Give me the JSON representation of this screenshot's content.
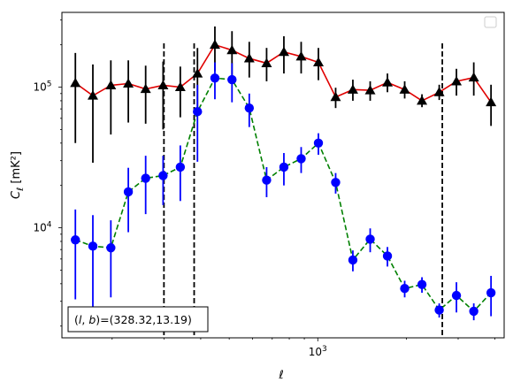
{
  "chart_data": {
    "type": "scatter",
    "xlabel": "ℓ",
    "ylabel": "C_ℓ  [mK²]",
    "xscale": "log",
    "yscale": "log",
    "xlim": [
      135,
      4300
    ],
    "ylim": [
      1650,
      340000
    ],
    "grid": false,
    "legend": {
      "placement": "top-right",
      "entries": []
    },
    "x_tick_labels": [
      {
        "value": 1000,
        "base": "10",
        "exp": "3"
      }
    ],
    "y_tick_labels": [
      {
        "value": 10000,
        "base": "10",
        "exp": "4"
      },
      {
        "value": 100000,
        "base": "10",
        "exp": "5"
      }
    ],
    "annotation": "(l, b)=(328.32,13.19)",
    "vlines": [
      300,
      380,
      2650
    ],
    "series": [
      {
        "color": "#000000",
        "line_color": "#e00000",
        "line_style": "solid",
        "marker": "triangle",
        "points": [
          {
            "x": 150,
            "y": 107000,
            "lo": 40000,
            "hi": 175000
          },
          {
            "x": 172,
            "y": 87000,
            "lo": 29000,
            "hi": 145000
          },
          {
            "x": 198,
            "y": 103000,
            "lo": 46000,
            "hi": 155000
          },
          {
            "x": 227,
            "y": 106000,
            "lo": 56000,
            "hi": 155000
          },
          {
            "x": 260,
            "y": 97000,
            "lo": 55000,
            "hi": 142000
          },
          {
            "x": 298,
            "y": 103000,
            "lo": 50000,
            "hi": 152000
          },
          {
            "x": 341,
            "y": 100000,
            "lo": 61000,
            "hi": 140000
          },
          {
            "x": 390,
            "y": 125000,
            "lo": 67000,
            "hi": 190000
          },
          {
            "x": 447,
            "y": 200000,
            "lo": 130000,
            "hi": 270000
          },
          {
            "x": 511,
            "y": 183000,
            "lo": 118000,
            "hi": 250000
          },
          {
            "x": 585,
            "y": 160000,
            "lo": 117000,
            "hi": 210000
          },
          {
            "x": 670,
            "y": 148000,
            "lo": 110000,
            "hi": 190000
          },
          {
            "x": 767,
            "y": 178000,
            "lo": 125000,
            "hi": 230000
          },
          {
            "x": 878,
            "y": 165000,
            "lo": 125000,
            "hi": 210000
          },
          {
            "x": 1005,
            "y": 150000,
            "lo": 112000,
            "hi": 190000
          },
          {
            "x": 1150,
            "y": 85000,
            "lo": 71000,
            "hi": 99000
          },
          {
            "x": 1316,
            "y": 96000,
            "lo": 80000,
            "hi": 113000
          },
          {
            "x": 1507,
            "y": 95000,
            "lo": 80000,
            "hi": 110000
          },
          {
            "x": 1725,
            "y": 108000,
            "lo": 92000,
            "hi": 125000
          },
          {
            "x": 1974,
            "y": 96000,
            "lo": 83000,
            "hi": 110000
          },
          {
            "x": 2260,
            "y": 80000,
            "lo": 72000,
            "hi": 89000
          },
          {
            "x": 2587,
            "y": 92000,
            "lo": 81000,
            "hi": 104000
          },
          {
            "x": 2960,
            "y": 110000,
            "lo": 87000,
            "hi": 135000
          },
          {
            "x": 3390,
            "y": 117000,
            "lo": 87000,
            "hi": 150000
          },
          {
            "x": 3880,
            "y": 78000,
            "lo": 53000,
            "hi": 104000
          }
        ]
      },
      {
        "color": "#0000ff",
        "line_color": "#008000",
        "line_style": "dashed",
        "marker": "circle",
        "points": [
          {
            "x": 150,
            "y": 8200,
            "lo": 3100,
            "hi": 13500
          },
          {
            "x": 172,
            "y": 7400,
            "lo": 2700,
            "hi": 12300
          },
          {
            "x": 198,
            "y": 7200,
            "lo": 3200,
            "hi": 11300
          },
          {
            "x": 227,
            "y": 18000,
            "lo": 9300,
            "hi": 26700
          },
          {
            "x": 260,
            "y": 22500,
            "lo": 12500,
            "hi": 32500
          },
          {
            "x": 298,
            "y": 23500,
            "lo": 14500,
            "hi": 32500
          },
          {
            "x": 341,
            "y": 27000,
            "lo": 15500,
            "hi": 38500
          },
          {
            "x": 390,
            "y": 67000,
            "lo": 29500,
            "hi": 104000
          },
          {
            "x": 447,
            "y": 116000,
            "lo": 82000,
            "hi": 150000
          },
          {
            "x": 511,
            "y": 113000,
            "lo": 78000,
            "hi": 148000
          },
          {
            "x": 585,
            "y": 71000,
            "lo": 52000,
            "hi": 90000
          },
          {
            "x": 670,
            "y": 21800,
            "lo": 16500,
            "hi": 27000
          },
          {
            "x": 767,
            "y": 27000,
            "lo": 20000,
            "hi": 34000
          },
          {
            "x": 878,
            "y": 31000,
            "lo": 24500,
            "hi": 37500
          },
          {
            "x": 1005,
            "y": 40000,
            "lo": 33000,
            "hi": 47000
          },
          {
            "x": 1150,
            "y": 21000,
            "lo": 17500,
            "hi": 24500
          },
          {
            "x": 1316,
            "y": 5900,
            "lo": 4900,
            "hi": 6900
          },
          {
            "x": 1507,
            "y": 8300,
            "lo": 6700,
            "hi": 9900
          },
          {
            "x": 1725,
            "y": 6300,
            "lo": 5300,
            "hi": 7300
          },
          {
            "x": 1974,
            "y": 3700,
            "lo": 3200,
            "hi": 4200
          },
          {
            "x": 2260,
            "y": 3950,
            "lo": 3450,
            "hi": 4450
          },
          {
            "x": 2587,
            "y": 2600,
            "lo": 2300,
            "hi": 2900
          },
          {
            "x": 2960,
            "y": 3300,
            "lo": 2500,
            "hi": 4100
          },
          {
            "x": 3390,
            "y": 2550,
            "lo": 2200,
            "hi": 2900
          },
          {
            "x": 3880,
            "y": 3450,
            "lo": 2350,
            "hi": 4550
          }
        ]
      }
    ]
  }
}
